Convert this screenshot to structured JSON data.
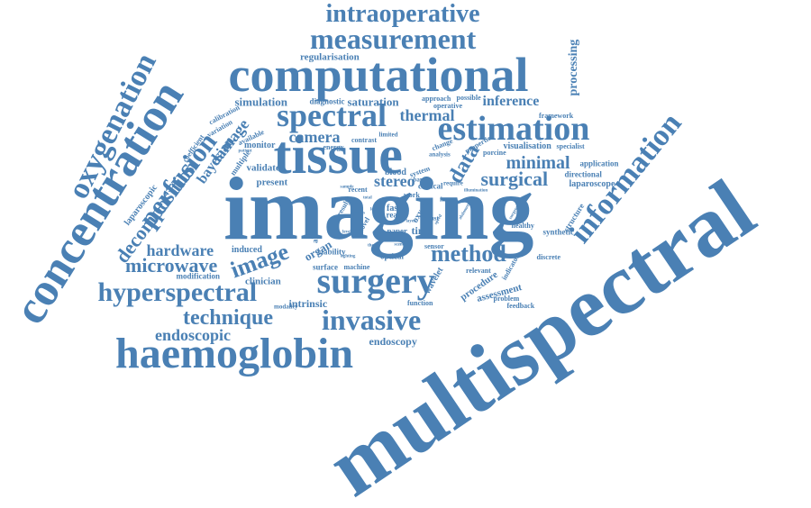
{
  "color": "#4a80b4",
  "words": {
    "multispectral": "multispectral",
    "imaging": "imaging",
    "tissue": "tissue",
    "computational": "computational",
    "concentration": "concentration",
    "haemoglobin": "haemoglobin",
    "surgery": "surgery",
    "spectral": "spectral",
    "estimation": "estimation",
    "measurement": "measurement",
    "intraoperative": "intraoperative",
    "hyperspectral": "hyperspectral",
    "invasive": "invasive",
    "oxygenation": "oxygenation",
    "information": "information",
    "perfusion": "perfusion",
    "method": "method",
    "image": "image",
    "technique": "technique",
    "decomposition": "decomposition",
    "data": "data",
    "surgical": "surgical",
    "minimal": "minimal",
    "microwave": "microwave",
    "hardware": "hardware",
    "endoscopic": "endoscopic",
    "inference": "inference",
    "thermal": "thermal",
    "camera": "camera",
    "stereo": "stereo",
    "damage": "damage",
    "bayesian": "bayesian",
    "processing": "processing",
    "endoscopy": "endoscopy",
    "simulation": "simulation",
    "saturation": "saturation",
    "regularisation": "regularisation",
    "visualisation": "visualisation",
    "laparoscope": "laparoscope",
    "laparoscopic": "laparoscopic",
    "clinician": "clinician",
    "intrinsic": "intrinsic",
    "organ": "organ",
    "validate": "validate",
    "present": "present",
    "monitor": "monitor",
    "diagnostic": "diagnostic",
    "induced": "induced",
    "modification": "modification",
    "procedure": "procedure",
    "assessment": "assessment",
    "application": "application",
    "directional": "directional",
    "framework": "framework",
    "specialist": "specialist",
    "synthetic": "synthetic",
    "structure": "structure",
    "healthy": "healthy",
    "surface": "surface",
    "optical": "optical",
    "sensor": "sensor",
    "time": "time",
    "paper": "paper",
    "blood": "blood",
    "system": "system",
    "discrete": "discrete",
    "function": "function",
    "wavelet": "wavelet",
    "feedback": "feedback",
    "problem": "problem",
    "viability": "viability",
    "ablation": "ablation",
    "recent": "recent",
    "novel": "novel",
    "work": "work",
    "clinical": "clinical",
    "multiple": "multiple",
    "calibration": "calibration",
    "variation": "variation",
    "coefficient": "coefficient",
    "available": "available",
    "energy": "energy",
    "contrast": "contrast",
    "limited": "limited",
    "change": "change",
    "analysis": "analysis",
    "operative": "operative",
    "approach": "approach",
    "possible": "possible",
    "properties": "properties",
    "porcine": "porcine",
    "modality": "modality",
    "machine": "machine",
    "relevant": "relevant",
    "indicator": "indicator",
    "result": "result",
    "fast": "fast",
    "real": "real",
    "oxygen": "oxygen",
    "band": "band",
    "require": "require",
    "robust": "robust",
    "frame": "frame",
    "sample": "sample",
    "model": "model",
    "patient": "patient",
    "total": "total",
    "tissues": "tissues",
    "lens": "lens",
    "spectra": "spectra",
    "level": "level",
    "speed": "speed",
    "abdomen": "abdomen",
    "surgeon": "surgeon",
    "illumination": "illumination",
    "pixel": "pixel",
    "scene": "scene",
    "theory": "theory",
    "lighting": "lighting",
    "layer": "layer"
  }
}
